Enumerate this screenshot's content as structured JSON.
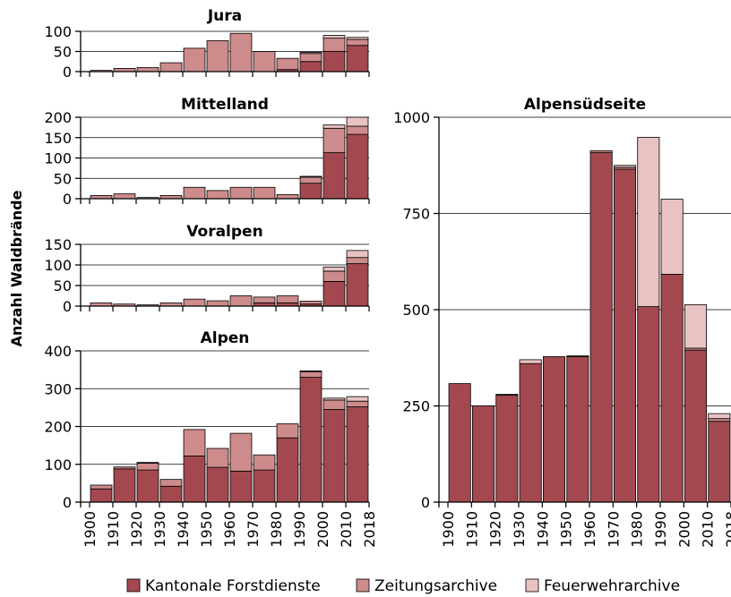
{
  "y_axis_label": "Anzahl Waldbrände",
  "legend": [
    {
      "label": "Kantonale Forstdienste",
      "color": "#a3484f"
    },
    {
      "label": "Zeitungsarchive",
      "color": "#cd8b8b"
    },
    {
      "label": "Feuerwehrarchive",
      "color": "#e9c3c3"
    }
  ],
  "x_tick_labels": [
    "1900",
    "1910",
    "1920",
    "1930",
    "1940",
    "1950",
    "1960",
    "1970",
    "1980",
    "1990",
    "2000",
    "2010",
    "2018"
  ],
  "chart_data": [
    {
      "type": "bar",
      "stacked": true,
      "title": "Jura",
      "categories": [
        "1900s",
        "1910s",
        "1920s",
        "1930s",
        "1940s",
        "1950s",
        "1960s",
        "1970s",
        "1980s",
        "1990s",
        "2000s",
        "2010s"
      ],
      "ylim": [
        0,
        100
      ],
      "yticks": [
        0,
        50,
        100
      ],
      "series": [
        {
          "name": "Kantonale Forstdienste",
          "values": [
            0,
            0,
            0,
            0,
            0,
            0,
            0,
            0,
            5,
            25,
            50,
            65
          ]
        },
        {
          "name": "Zeitungsarchive",
          "values": [
            3,
            8,
            10,
            22,
            58,
            77,
            95,
            50,
            28,
            20,
            33,
            15
          ]
        },
        {
          "name": "Feuerwehrarchive",
          "values": [
            0,
            0,
            0,
            0,
            0,
            0,
            0,
            0,
            0,
            3,
            7,
            5
          ]
        }
      ]
    },
    {
      "type": "bar",
      "stacked": true,
      "title": "Mittelland",
      "categories": [
        "1900s",
        "1910s",
        "1920s",
        "1930s",
        "1940s",
        "1950s",
        "1960s",
        "1970s",
        "1980s",
        "1990s",
        "2000s",
        "2010s"
      ],
      "ylim": [
        0,
        200
      ],
      "yticks": [
        0,
        50,
        100,
        150,
        200
      ],
      "series": [
        {
          "name": "Kantonale Forstdienste",
          "values": [
            0,
            0,
            0,
            0,
            0,
            0,
            0,
            0,
            0,
            38,
            113,
            158
          ]
        },
        {
          "name": "Zeitungsarchive",
          "values": [
            8,
            12,
            3,
            8,
            28,
            20,
            28,
            28,
            10,
            15,
            60,
            20
          ]
        },
        {
          "name": "Feuerwehrarchive",
          "values": [
            0,
            0,
            0,
            0,
            0,
            0,
            0,
            0,
            0,
            2,
            8,
            22
          ]
        }
      ]
    },
    {
      "type": "bar",
      "stacked": true,
      "title": "Voralpen",
      "categories": [
        "1900s",
        "1910s",
        "1920s",
        "1930s",
        "1940s",
        "1950s",
        "1960s",
        "1970s",
        "1980s",
        "1990s",
        "2000s",
        "2010s"
      ],
      "ylim": [
        0,
        150
      ],
      "yticks": [
        0,
        50,
        100,
        150
      ],
      "series": [
        {
          "name": "Kantonale Forstdienste",
          "values": [
            0,
            0,
            0,
            0,
            0,
            0,
            0,
            8,
            8,
            5,
            60,
            103
          ]
        },
        {
          "name": "Zeitungsarchive",
          "values": [
            8,
            5,
            3,
            8,
            17,
            13,
            25,
            14,
            17,
            7,
            25,
            15
          ]
        },
        {
          "name": "Feuerwehrarchive",
          "values": [
            0,
            0,
            0,
            0,
            0,
            0,
            0,
            0,
            0,
            0,
            10,
            17
          ]
        }
      ]
    },
    {
      "type": "bar",
      "stacked": true,
      "title": "Alpen",
      "categories": [
        "1900s",
        "1910s",
        "1920s",
        "1930s",
        "1940s",
        "1950s",
        "1960s",
        "1970s",
        "1980s",
        "1990s",
        "2000s",
        "2010s"
      ],
      "ylim": [
        0,
        400
      ],
      "yticks": [
        0,
        100,
        200,
        300,
        400
      ],
      "series": [
        {
          "name": "Kantonale Forstdienste",
          "values": [
            35,
            88,
            85,
            42,
            122,
            92,
            82,
            85,
            170,
            330,
            245,
            252
          ]
        },
        {
          "name": "Zeitungsarchive",
          "values": [
            10,
            5,
            18,
            18,
            70,
            50,
            100,
            40,
            37,
            15,
            25,
            15
          ]
        },
        {
          "name": "Feuerwehrarchive",
          "values": [
            0,
            0,
            2,
            0,
            0,
            0,
            0,
            0,
            0,
            2,
            5,
            12
          ]
        }
      ]
    },
    {
      "type": "bar",
      "stacked": true,
      "title": "Alpensüdseite",
      "categories": [
        "1900s",
        "1910s",
        "1920s",
        "1930s",
        "1940s",
        "1950s",
        "1960s",
        "1970s",
        "1980s",
        "1990s",
        "2000s",
        "2010s"
      ],
      "ylim": [
        0,
        1000
      ],
      "yticks": [
        0,
        250,
        500,
        750,
        1000
      ],
      "series": [
        {
          "name": "Kantonale Forstdienste",
          "values": [
            308,
            250,
            278,
            360,
            378,
            378,
            908,
            865,
            508,
            592,
            395,
            210
          ]
        },
        {
          "name": "Zeitungsarchive",
          "values": [
            0,
            0,
            2,
            0,
            0,
            2,
            5,
            5,
            0,
            0,
            5,
            7
          ]
        },
        {
          "name": "Feuerwehrarchive",
          "values": [
            0,
            0,
            0,
            10,
            0,
            0,
            0,
            5,
            440,
            195,
            113,
            13
          ]
        }
      ]
    }
  ]
}
